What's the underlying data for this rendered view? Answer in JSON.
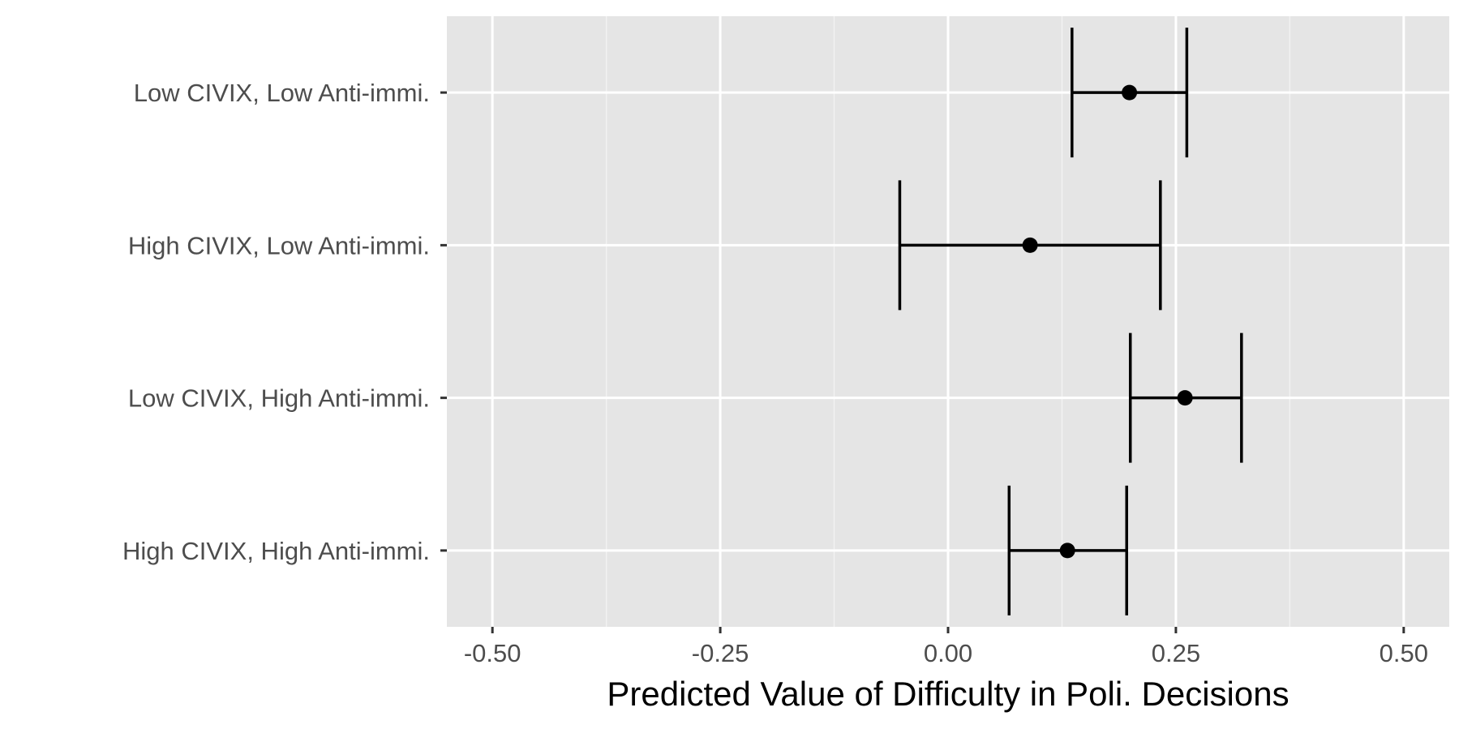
{
  "chart_data": {
    "type": "scatter",
    "subtype": "point-range (error bars)",
    "title": "",
    "xlabel": "Predicted Value of Difficulty in Poli. Decisions",
    "ylabel": "",
    "xlim": [
      -0.55,
      0.55
    ],
    "x_ticks": [
      -0.5,
      -0.25,
      0,
      0.25,
      0.5
    ],
    "x_tick_labels": [
      "-0.50",
      "-0.25",
      "0.00",
      "0.25",
      "0.50"
    ],
    "categories": [
      "Low CIVIX, Low Anti-immi.",
      "High CIVIX, Low Anti-immi.",
      "Low CIVIX, High Anti-immi.",
      "High CIVIX, High Anti-immi."
    ],
    "estimates": [
      0.199,
      0.09,
      0.26,
      0.131
    ],
    "lower": [
      0.136,
      -0.053,
      0.2,
      0.067
    ],
    "upper": [
      0.262,
      0.233,
      0.322,
      0.196
    ],
    "grid": true,
    "legend": "none",
    "colors": {
      "panel_background": "#e5e5e5",
      "grid_major": "#ffffff",
      "grid_minor": "#f2f2f2",
      "marks": "#000000",
      "tick_text": "#4d4d4d",
      "axis_ticks": "#333333"
    }
  }
}
